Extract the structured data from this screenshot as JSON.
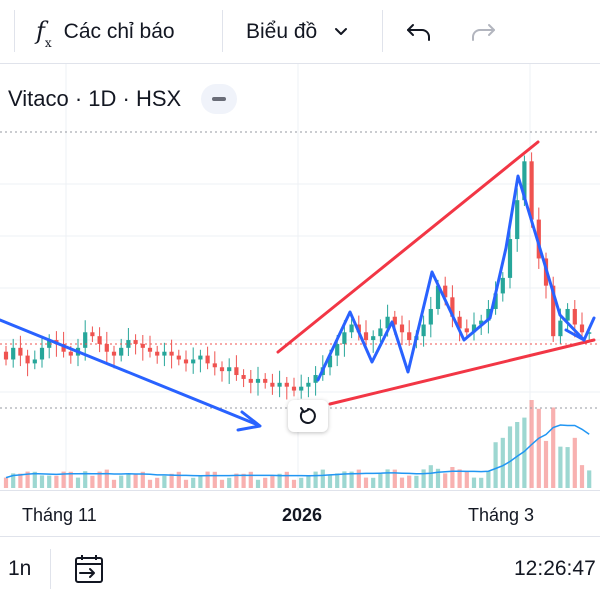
{
  "toolbar": {
    "indicators_label": "Các chỉ báo",
    "chart_type_label": "Biểu đồ",
    "icons": [
      "function-fx-icon",
      "chevron-down-icon",
      "undo-icon",
      "redo-icon"
    ]
  },
  "legend": {
    "symbol": "Vitaco · 1D · HSX"
  },
  "xaxis": {
    "labels": [
      "Tháng 11",
      "2026",
      "Tháng 3"
    ]
  },
  "bottom": {
    "interval": "1n",
    "time": "12:26:47",
    "icons": [
      "date-range-icon"
    ]
  },
  "colors": {
    "up": "#26a69a",
    "down": "#ef5350",
    "trend_blue": "#2962ff",
    "trend_red": "#f23645",
    "volume_ma": "#2196f3",
    "grid": "#eef0f4",
    "price_line": "#ef5350"
  },
  "chart_data": {
    "type": "candlestick",
    "series": "Vitaco · 1D · HSX",
    "x_ticks": [
      "Tháng 11",
      "2026",
      "Tháng 3"
    ],
    "price_levels": {
      "open": [
        15.1,
        14.9,
        15.2,
        15.0,
        14.8,
        14.9,
        15.2,
        15.4,
        15.3,
        15.1,
        15.0,
        15.2,
        15.6,
        15.5,
        15.3,
        15.1,
        15.0,
        15.2,
        15.4,
        15.3,
        15.2,
        15.1,
        15.0,
        15.1,
        15.0,
        14.9,
        14.8,
        14.9,
        15.0,
        14.8,
        14.7,
        14.6,
        14.7,
        14.5,
        14.4,
        14.3,
        14.4,
        14.3,
        14.2,
        14.3,
        14.2,
        14.1,
        14.2,
        14.3,
        14.5,
        14.7,
        15.0,
        15.3,
        15.6,
        15.8,
        15.6,
        15.4,
        15.5,
        15.7,
        16.0,
        15.8,
        15.6,
        15.4,
        15.5,
        15.8,
        16.2,
        16.8,
        16.5,
        16.0,
        15.7,
        15.6,
        15.8,
        15.9,
        16.2,
        16.6,
        17.0,
        18.0,
        19.0,
        20.0,
        18.5,
        17.5,
        16.8,
        15.5,
        15.9,
        16.2,
        15.8,
        15.6
      ],
      "close": [
        14.9,
        15.2,
        15.0,
        14.8,
        14.9,
        15.2,
        15.4,
        15.3,
        15.1,
        15.0,
        15.2,
        15.6,
        15.5,
        15.3,
        15.1,
        15.0,
        15.2,
        15.4,
        15.3,
        15.2,
        15.1,
        15.0,
        15.1,
        15.0,
        14.9,
        14.8,
        14.9,
        15.0,
        14.8,
        14.7,
        14.6,
        14.7,
        14.5,
        14.4,
        14.3,
        14.4,
        14.3,
        14.2,
        14.3,
        14.2,
        14.1,
        14.2,
        14.3,
        14.5,
        14.7,
        15.0,
        15.3,
        15.6,
        15.8,
        15.6,
        15.4,
        15.5,
        15.7,
        16.0,
        15.8,
        15.6,
        15.4,
        15.5,
        15.8,
        16.2,
        16.8,
        16.5,
        16.0,
        15.7,
        15.6,
        15.8,
        15.9,
        16.2,
        16.6,
        17.0,
        18.0,
        19.0,
        20.0,
        18.5,
        17.5,
        16.8,
        15.5,
        15.9,
        16.2,
        15.8,
        15.6,
        15.6
      ]
    },
    "volume_ma_visible": true,
    "last_price_line": "dotted",
    "annotations": [
      "blue downtrend line",
      "red rising wedge lines",
      "blue zigzag path with arrows"
    ],
    "grid": true
  }
}
